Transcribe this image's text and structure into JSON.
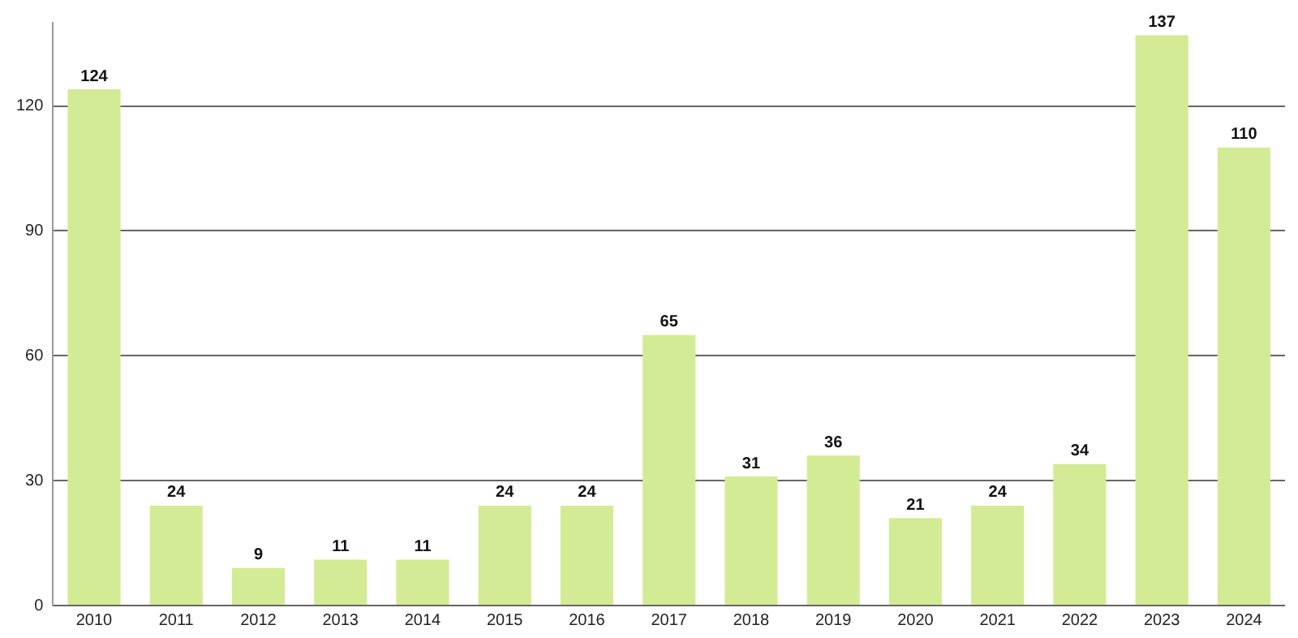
{
  "chart_data": {
    "type": "bar",
    "categories": [
      "2010",
      "2011",
      "2012",
      "2013",
      "2014",
      "2015",
      "2016",
      "2017",
      "2018",
      "2019",
      "2020",
      "2021",
      "2022",
      "2023",
      "2024"
    ],
    "values": [
      124,
      24,
      9,
      11,
      11,
      24,
      24,
      65,
      31,
      36,
      21,
      24,
      34,
      137,
      110
    ],
    "color": "#d4eb95",
    "ylim": [
      0,
      140
    ],
    "yticks": [
      0,
      30,
      60,
      90,
      120
    ],
    "grid": "y",
    "data_labels": true,
    "legend": false
  }
}
